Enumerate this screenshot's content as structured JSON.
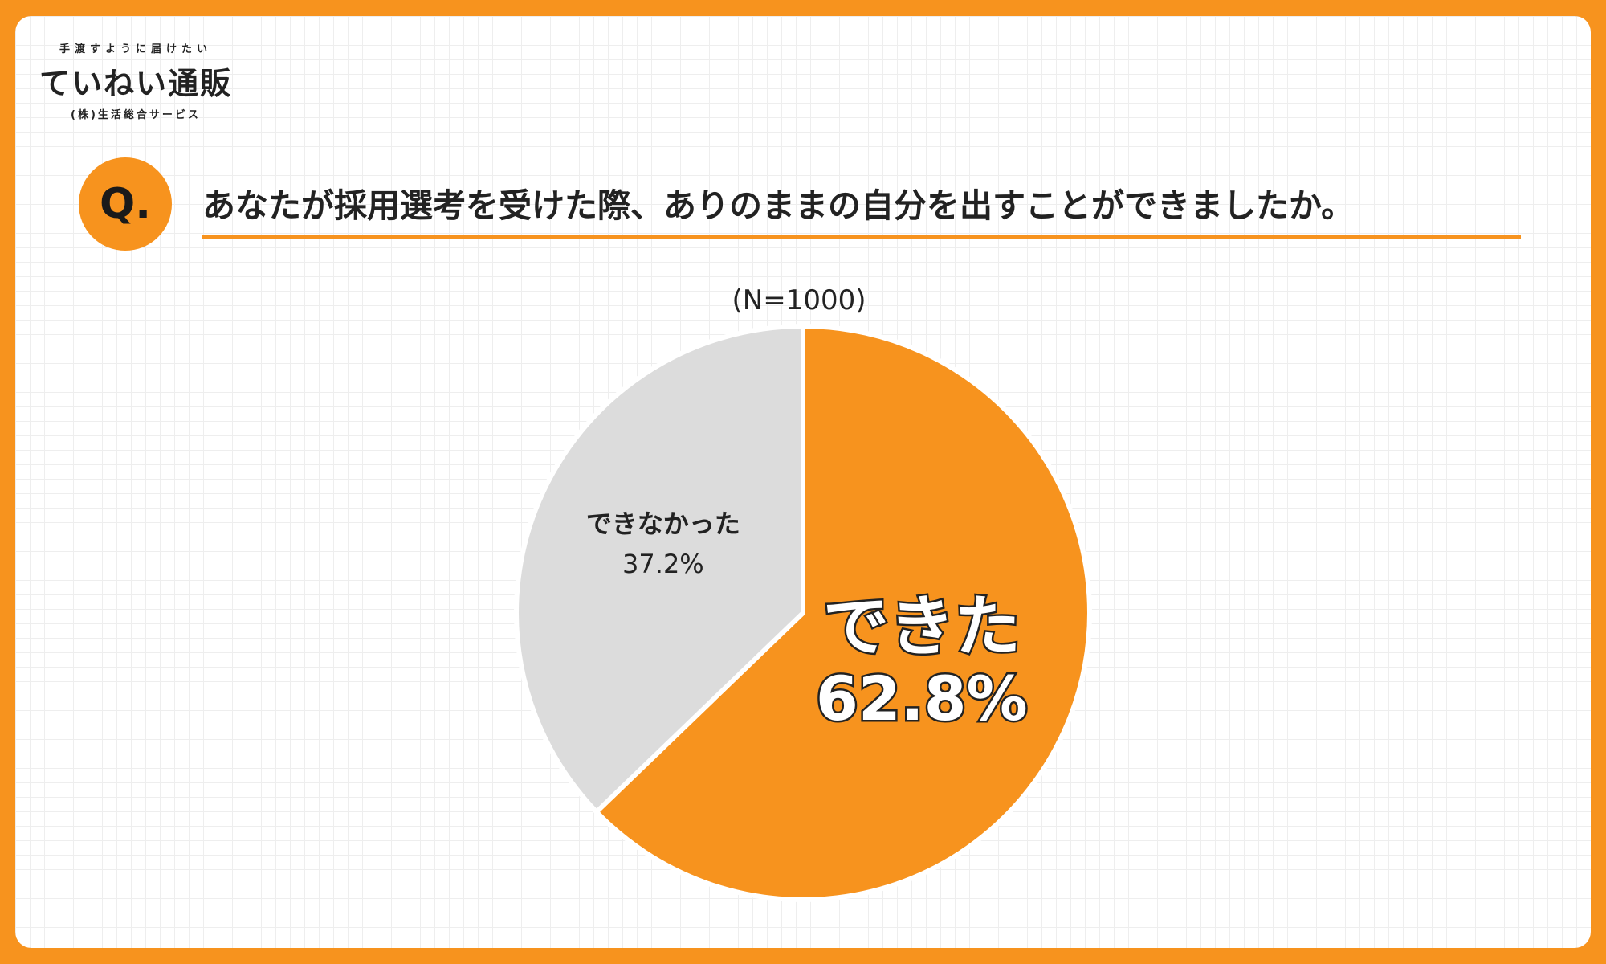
{
  "logo": {
    "tagline": "手渡すように届けたい",
    "title": "ていねい通販",
    "company": "(株)生活総合サービス"
  },
  "question": {
    "badge": "Q.",
    "text": "あなたが採用選考を受けた際、ありのままの自分を出すことができましたか。"
  },
  "chart_data": {
    "type": "pie",
    "title": "(N=1000)",
    "categories": [
      "できた",
      "できなかった"
    ],
    "values": [
      62.8,
      37.2
    ],
    "value_labels": [
      "62.8%",
      "37.2%"
    ],
    "colors": [
      "#f7931e",
      "#dcdcdc"
    ],
    "start": "12 o'clock",
    "direction": "clockwise"
  }
}
